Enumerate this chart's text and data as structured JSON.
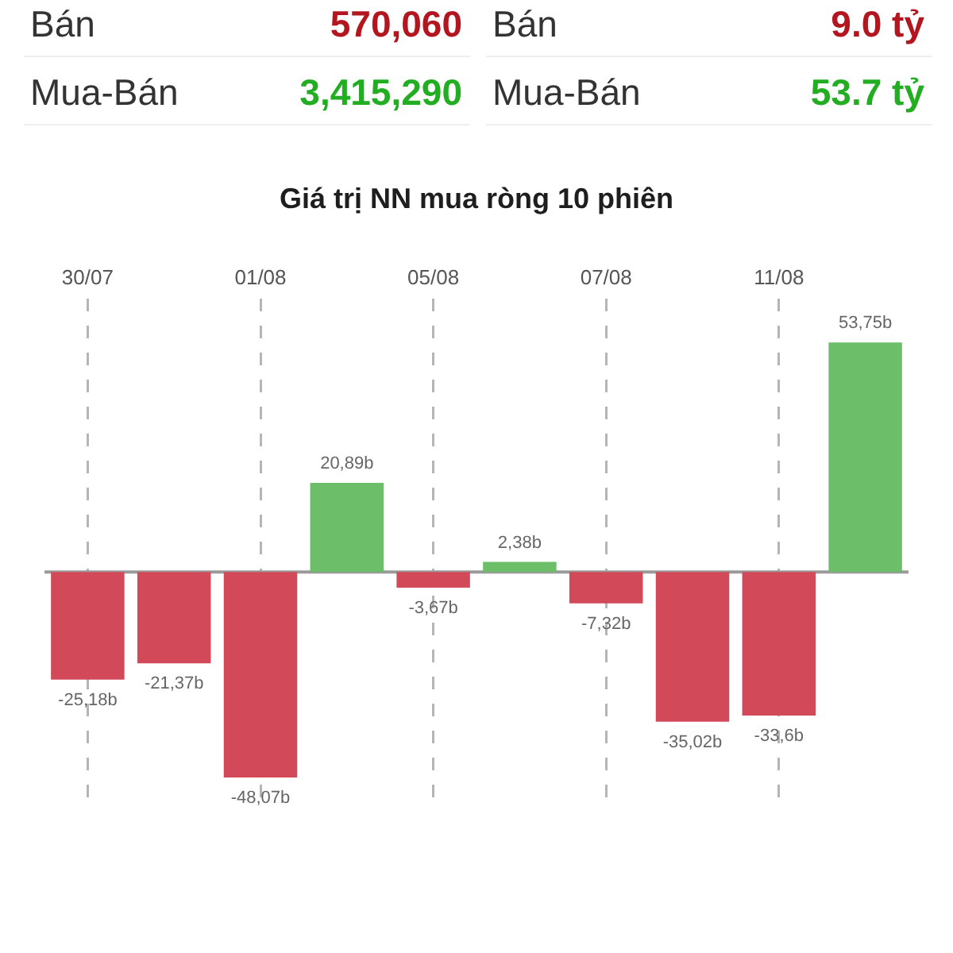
{
  "chart_data": [
    {
      "type": "other",
      "annotations": [
        "Bán",
        "570,060",
        "Bán",
        "9.0 tỷ",
        "Mua-Bán",
        "3,415,290",
        "Mua-Bán",
        "53.7 tỷ"
      ],
      "colors": [
        "#333333",
        "#b3161e",
        "#333333",
        "#b3161e",
        "#333333",
        "#22ad22",
        "#333333",
        "#22ad22"
      ]
    },
    {
      "type": "bar",
      "title": "Giá trị NN mua ròng 10 phiên",
      "categories": [
        "30/07",
        null,
        "01/08",
        null,
        "05/08",
        null,
        "07/08",
        null,
        "11/08",
        null
      ],
      "values": [
        -25.18,
        -21.37,
        -48.07,
        20.89,
        -3.67,
        2.38,
        -7.32,
        -35.02,
        -33.6,
        53.75
      ],
      "colors": [
        "#d24a5a",
        "#d24a5a",
        "#d24a5a",
        "#6dbe69",
        "#d24a5a",
        "#6dbe69",
        "#d24a5a",
        "#d24a5a",
        "#d24a5a",
        "#6dbe69"
      ],
      "value_labels": [
        "-25,18b",
        "-21,37b",
        "-48,07b",
        "20,89b",
        "-3,67b",
        "2,38b",
        "-7,32b",
        "-35,02b",
        "-33,6b",
        "53,75b"
      ],
      "grid": "x",
      "tick_labels": "x"
    }
  ]
}
